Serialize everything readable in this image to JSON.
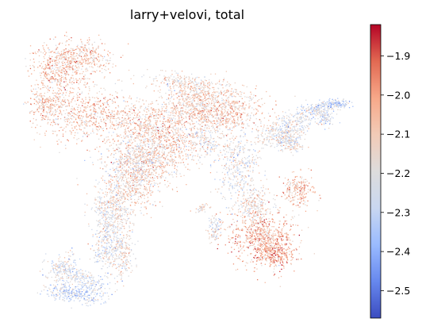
{
  "chart_data": {
    "type": "scatter",
    "title": "larry+velovi, total",
    "xlabel": "",
    "ylabel": "",
    "grid": false,
    "axes_visible": false,
    "colormap": {
      "name": "coolwarm",
      "stops": [
        "#3b4cc0",
        "#6788ee",
        "#9abbff",
        "#c9d7f0",
        "#dddcdc",
        "#f2cbb7",
        "#f7a889",
        "#e26952",
        "#b40426"
      ],
      "range": [
        -2.57,
        -1.82
      ],
      "ticks": [
        -1.9,
        -2.0,
        -2.1,
        -2.2,
        -2.3,
        -2.4,
        -2.5
      ],
      "tick_labels": [
        "−1.9",
        "−2.0",
        "−2.1",
        "−2.2",
        "−2.3",
        "−2.4",
        "−2.5"
      ]
    },
    "point_color_distribution": "predominantly -2.1 to -2.3; warmer (about -2.05) in upper-left lobe, central band and lower-right cluster; cooler (about -2.3) in the lower-left arm and right-hand branch tips",
    "marker": "tiny points, thousands of cells"
  }
}
